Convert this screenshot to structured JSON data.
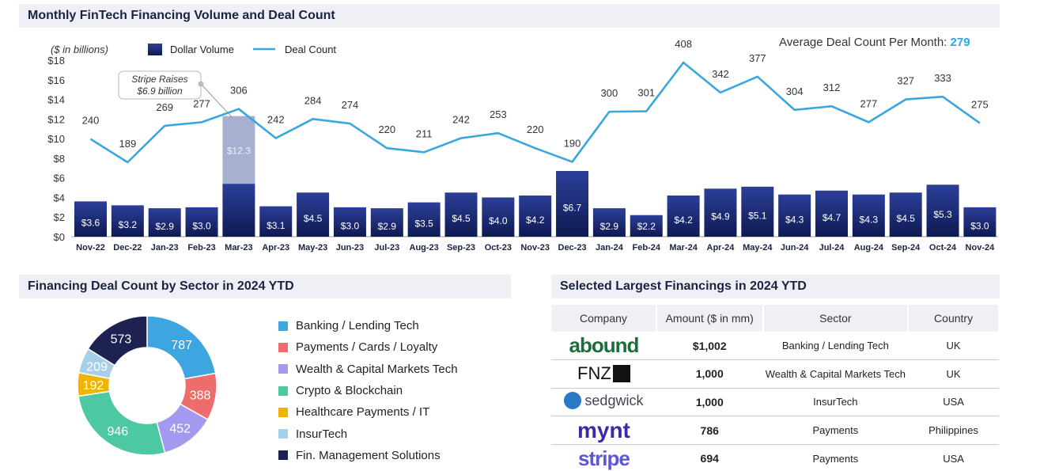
{
  "headers": {
    "top": "Monthly FinTech Financing Volume and Deal Count",
    "sector": "Financing Deal Count by Sector in 2024 YTD",
    "financings": "Selected Largest Financings in 2024 YTD"
  },
  "avg": {
    "label": "Average Deal Count Per Month:",
    "value": "279"
  },
  "chart_data": [
    {
      "type": "bar",
      "title": "Monthly FinTech Financing Volume and Deal Count",
      "unit_note": "($ in billions)",
      "legend": [
        "Dollar Volume",
        "Deal Count"
      ],
      "ylim": [
        0,
        18
      ],
      "y_ticks": [
        "$0",
        "$2",
        "$4",
        "$6",
        "$8",
        "$10",
        "$12",
        "$14",
        "$16",
        "$18"
      ],
      "categories": [
        "Nov-22",
        "Dec-22",
        "Jan-23",
        "Feb-23",
        "Mar-23",
        "Apr-23",
        "May-23",
        "Jun-23",
        "Jul-23",
        "Aug-23",
        "Sep-23",
        "Oct-23",
        "Nov-23",
        "Dec-23",
        "Jan-24",
        "Feb-24",
        "Mar-24",
        "Apr-24",
        "May-24",
        "Jun-24",
        "Jul-24",
        "Aug-24",
        "Sep-24",
        "Oct-24",
        "Nov-24"
      ],
      "series": [
        {
          "name": "Dollar Volume",
          "values": [
            3.6,
            3.2,
            2.9,
            3.0,
            12.3,
            3.1,
            4.5,
            3.0,
            2.9,
            3.5,
            4.5,
            4.0,
            4.2,
            6.7,
            2.9,
            2.2,
            4.2,
            4.9,
            5.1,
            4.3,
            4.7,
            4.3,
            4.5,
            5.3,
            3.0
          ],
          "labels": [
            "$3.6",
            "$3.2",
            "$2.9",
            "$3.0",
            "$12.3",
            "$3.1",
            "$4.5",
            "$3.0",
            "$2.9",
            "$3.5",
            "$4.5",
            "$4.0",
            "$4.2",
            "$6.7",
            "$2.9",
            "$2.2",
            "$4.2",
            "$4.9",
            "$5.1",
            "$4.3",
            "$4.7",
            "$4.3",
            "$4.5",
            "$5.3",
            "$3.0"
          ],
          "highlight_component": {
            "index": 4,
            "value": 6.9
          }
        },
        {
          "name": "Deal Count",
          "values": [
            240,
            189,
            269,
            277,
            306,
            242,
            284,
            274,
            220,
            211,
            242,
            253,
            220,
            190,
            300,
            301,
            408,
            342,
            377,
            304,
            312,
            277,
            327,
            333,
            275
          ]
        }
      ],
      "annotation": {
        "line1": "Stripe Raises",
        "line2": "$6.9 billion",
        "index": 4
      }
    },
    {
      "type": "pie",
      "title": "Financing Deal Count by Sector in 2024 YTD",
      "slices": [
        {
          "label": "Banking / Lending Tech",
          "value": 787,
          "color": "#3da5e0"
        },
        {
          "label": "Payments / Cards / Loyalty",
          "value": 388,
          "color": "#ee6c6c"
        },
        {
          "label": "Wealth & Capital Markets Tech",
          "value": 452,
          "color": "#a39af0"
        },
        {
          "label": "Crypto & Blockchain",
          "value": 946,
          "color": "#4cc8a3"
        },
        {
          "label": "Healthcare Payments / IT",
          "value": 192,
          "color": "#f0b400"
        },
        {
          "label": "InsurTech",
          "value": 209,
          "color": "#a6d0ea"
        },
        {
          "label": "Fin. Management Solutions",
          "value": 573,
          "color": "#1d2250"
        }
      ]
    }
  ],
  "table": {
    "columns": [
      "Company",
      "Amount ($ in mm)",
      "Sector",
      "Country"
    ],
    "rows": [
      {
        "logo": "abound",
        "logo_text": "abound",
        "amount": "$1,002",
        "sector": "Banking / Lending Tech",
        "country": "UK"
      },
      {
        "logo": "fnz",
        "logo_text": "FNZ",
        "amount": "1,000",
        "sector": "Wealth & Capital Markets Tech",
        "country": "UK"
      },
      {
        "logo": "sedgwick",
        "logo_text": "sedgwick",
        "amount": "1,000",
        "sector": "InsurTech",
        "country": "USA"
      },
      {
        "logo": "mynt",
        "logo_text": "mynt",
        "amount": "786",
        "sector": "Payments",
        "country": "Philippines"
      },
      {
        "logo": "stripe",
        "logo_text": "stripe",
        "amount": "694",
        "sector": "Payments",
        "country": "USA"
      }
    ]
  },
  "colors": {
    "bar_top": "#2c3f99",
    "bar_bottom": "#0e1a52",
    "highlight_bar": "#a7b0cf",
    "line": "#3aa6e0",
    "header_bg": "#eef0f6"
  }
}
